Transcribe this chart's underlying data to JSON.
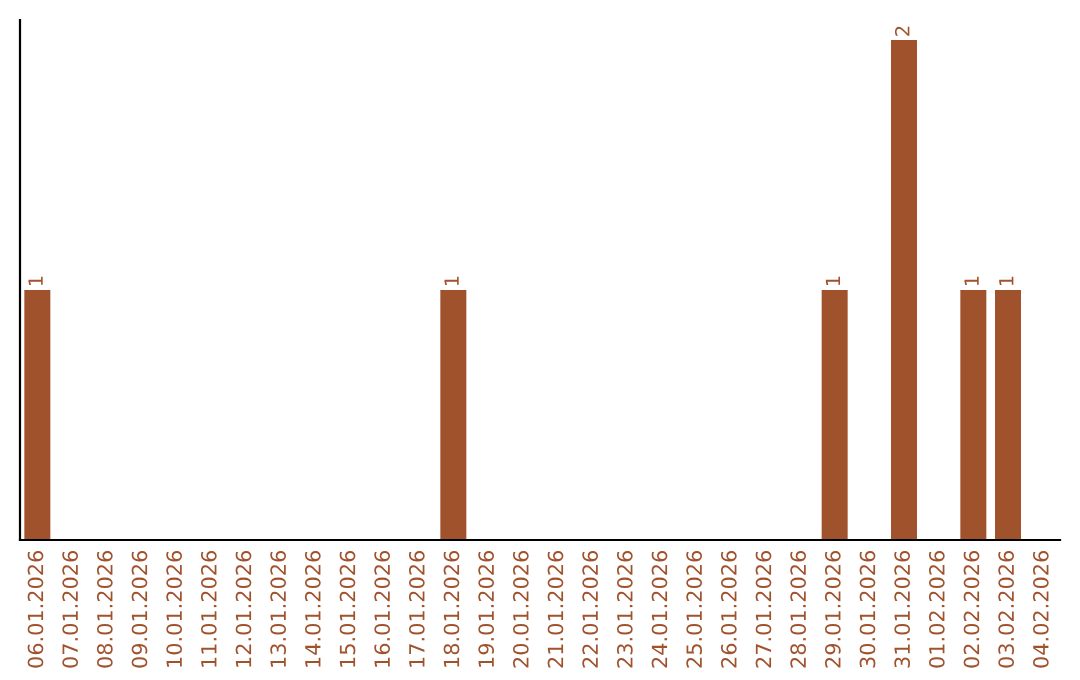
{
  "chart_data": {
    "type": "bar",
    "categories": [
      "06.01.2026",
      "07.01.2026",
      "08.01.2026",
      "09.01.2026",
      "10.01.2026",
      "11.01.2026",
      "12.01.2026",
      "13.01.2026",
      "14.01.2026",
      "15.01.2026",
      "16.01.2026",
      "17.01.2026",
      "18.01.2026",
      "19.01.2026",
      "20.01.2026",
      "21.01.2026",
      "22.01.2026",
      "23.01.2026",
      "24.01.2026",
      "25.01.2026",
      "26.01.2026",
      "27.01.2026",
      "28.01.2026",
      "29.01.2026",
      "30.01.2026",
      "31.01.2026",
      "01.02.2026",
      "02.02.2026",
      "03.02.2026",
      "04.02.2026"
    ],
    "values": [
      1,
      0,
      0,
      0,
      0,
      0,
      0,
      0,
      0,
      0,
      0,
      0,
      1,
      0,
      0,
      0,
      0,
      0,
      0,
      0,
      0,
      0,
      0,
      1,
      0,
      2,
      0,
      1,
      1,
      0
    ],
    "value_labels": [
      "1",
      null,
      null,
      null,
      null,
      null,
      null,
      null,
      null,
      null,
      null,
      null,
      "1",
      null,
      null,
      null,
      null,
      null,
      null,
      null,
      null,
      null,
      null,
      "1",
      null,
      "2",
      null,
      "1",
      "1",
      null
    ],
    "color": "#a0522d",
    "ylim": [
      0,
      2.08
    ],
    "tick_labels": "x",
    "grid": false,
    "legend": false
  }
}
